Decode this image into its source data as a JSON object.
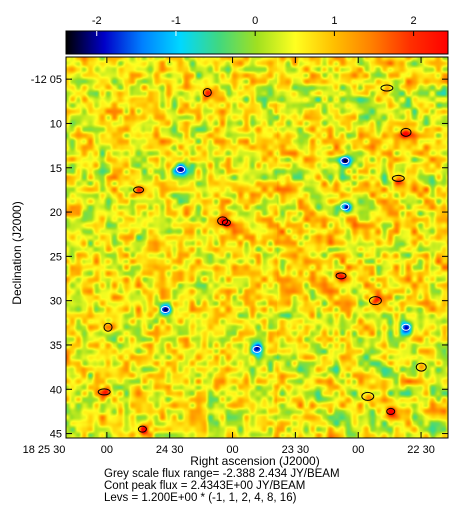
{
  "chart_data": {
    "type": "heatmap",
    "colorbar": {
      "ticks": [
        {
          "value": -2,
          "label": "-2"
        },
        {
          "value": -1,
          "label": "-1"
        },
        {
          "value": 0,
          "label": "0"
        },
        {
          "value": 1,
          "label": "1"
        },
        {
          "value": 2,
          "label": "2"
        }
      ],
      "range": [
        -2.388,
        2.434
      ],
      "colors": [
        "#000000",
        "#0000c8",
        "#0080ff",
        "#00d8ff",
        "#40d880",
        "#a0e020",
        "#ffff20",
        "#ffc000",
        "#ff8000",
        "#ff3000",
        "#ff0000"
      ]
    },
    "xlabel": "Right ascension (J2000)",
    "ylabel": "Declination (J2000)",
    "xticks": [
      {
        "label": "18 25 30",
        "frac": 0.0
      },
      {
        "label": "00",
        "frac": 0.1556
      },
      {
        "label": "24 30",
        "frac": 0.3111
      },
      {
        "label": "00",
        "frac": 0.4667
      },
      {
        "label": "23 30",
        "frac": 0.6222
      },
      {
        "label": "00",
        "frac": 0.7778
      },
      {
        "label": "22 30",
        "frac": 0.9333
      }
    ],
    "yticks": [
      {
        "label": "-12 05",
        "value": 5
      },
      {
        "label": "10",
        "value": 10
      },
      {
        "label": "15",
        "value": 15
      },
      {
        "label": "20",
        "value": 20
      },
      {
        "label": "25",
        "value": 25
      },
      {
        "label": "30",
        "value": 30
      },
      {
        "label": "35",
        "value": 35
      },
      {
        "label": "40",
        "value": 40
      },
      {
        "label": "45",
        "value": 45
      }
    ],
    "ylim": [
      2.5,
      45.5
    ],
    "contour_levels_scale": 1.2,
    "contour_levels": [
      -1,
      1,
      2,
      4,
      8,
      16
    ],
    "contour_peaks": [
      {
        "x": 0.42,
        "y": 21.2
      },
      {
        "x": 0.41,
        "y": 21.0
      },
      {
        "x": 0.1,
        "y": 40.3
      },
      {
        "x": 0.11,
        "y": 33.0
      },
      {
        "x": 0.19,
        "y": 17.5
      },
      {
        "x": 0.79,
        "y": 40.8
      },
      {
        "x": 0.85,
        "y": 42.5
      },
      {
        "x": 0.89,
        "y": 11.0
      },
      {
        "x": 0.87,
        "y": 16.2
      },
      {
        "x": 0.37,
        "y": 6.5
      },
      {
        "x": 0.72,
        "y": 27.2
      },
      {
        "x": 0.81,
        "y": 30.0
      },
      {
        "x": 0.2,
        "y": 44.5
      },
      {
        "x": 0.93,
        "y": 37.5
      },
      {
        "x": 0.84,
        "y": 6.0
      }
    ],
    "neg_features": [
      {
        "x": 0.73,
        "y": 19.4
      },
      {
        "x": 0.26,
        "y": 31.0
      },
      {
        "x": 0.3,
        "y": 15.2
      },
      {
        "x": 0.89,
        "y": 33.0
      },
      {
        "x": 0.73,
        "y": 14.2
      },
      {
        "x": 0.5,
        "y": 35.5
      }
    ],
    "caption": [
      "Grey scale flux range= -2.388 2.434 JY/BEAM",
      "Cont peak flux =  2.4343E+00 JY/BEAM",
      "Levs = 1.200E+00 * (-1, 1, 2, 4, 8, 16)"
    ]
  }
}
